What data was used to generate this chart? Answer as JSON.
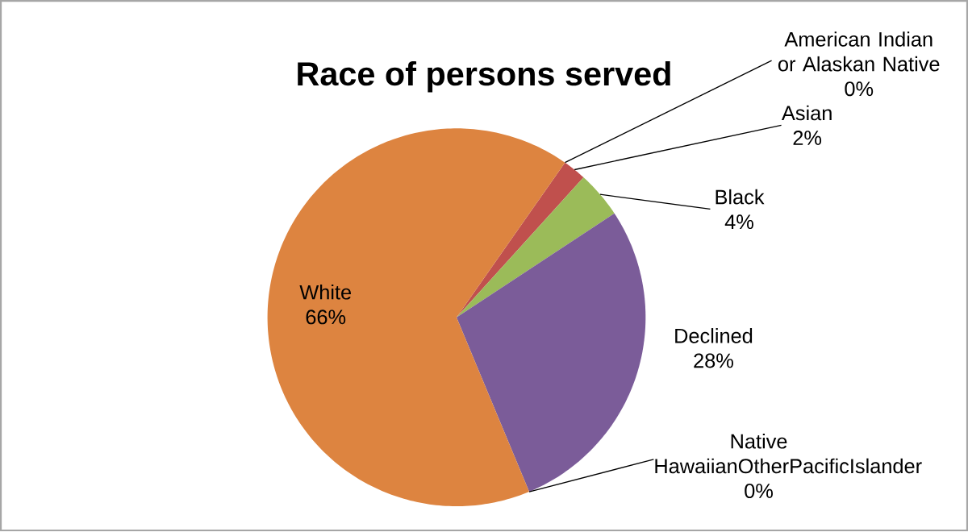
{
  "chart_data": {
    "type": "pie",
    "title": "Race of persons served",
    "categories": [
      "American Indian or Alaskan Native",
      "Asian",
      "Black",
      "Declined",
      "Native HawaiianOtherPacificIslander",
      "White"
    ],
    "values": [
      0,
      2,
      4,
      28,
      0,
      66
    ],
    "value_labels": [
      "0%",
      "2%",
      "4%",
      "28%",
      "0%",
      "66%"
    ],
    "colors": [
      "#4f81bd",
      "#c0504d",
      "#9bbb59",
      "#7b5c99",
      "#4bacc6",
      "#dd8440"
    ]
  }
}
